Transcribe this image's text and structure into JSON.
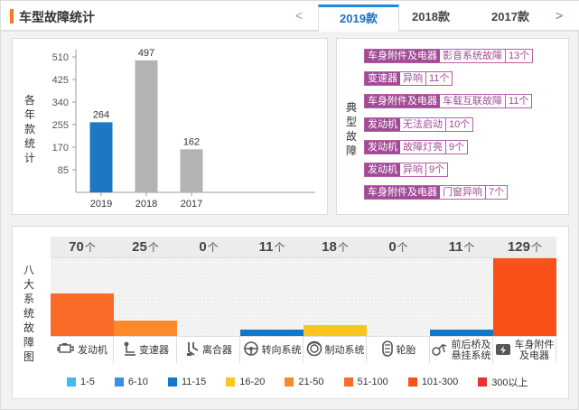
{
  "header": {
    "title": "车型故障统计",
    "prev_arrow": "<",
    "next_arrow": ">",
    "tabs": [
      {
        "label": "2019款",
        "active": true
      },
      {
        "label": "2018款",
        "active": false
      },
      {
        "label": "2017款",
        "active": false
      }
    ]
  },
  "chart_panel": {
    "side_label": [
      "各",
      "年",
      "款",
      "统",
      "计"
    ],
    "accent_color": "#1f77c4"
  },
  "chart_data": {
    "type": "bar",
    "categories": [
      "2019",
      "2018",
      "2017"
    ],
    "values": [
      264,
      497,
      162
    ],
    "colors": [
      "#1f77c4",
      "#b3b3b3",
      "#b3b3b3"
    ],
    "yticks": [
      85,
      170,
      255,
      340,
      425,
      510
    ],
    "ylim": [
      0,
      510
    ],
    "grid": false
  },
  "typical_panel": {
    "side_label": [
      "典",
      "型",
      "故",
      "障"
    ],
    "items": [
      {
        "category": "车身附件及电器",
        "desc": "影音系统故障",
        "count": "13个"
      },
      {
        "category": "变速器",
        "desc": "异响",
        "count": "11个"
      },
      {
        "category": "车身附件及电器",
        "desc": "车载互联故障",
        "count": "11个"
      },
      {
        "category": "发动机",
        "desc": "无法启动",
        "count": "10个"
      },
      {
        "category": "发动机",
        "desc": "故障灯亮",
        "count": "9个"
      },
      {
        "category": "发动机",
        "desc": "异响",
        "count": "9个"
      },
      {
        "category": "车身附件及电器",
        "desc": "门窗异响",
        "count": "7个"
      }
    ]
  },
  "eight_panel": {
    "side_label": [
      "八",
      "大",
      "系",
      "统",
      "故",
      "障",
      "图"
    ],
    "unit": "个",
    "max_value": 129,
    "systems": [
      {
        "value": 70,
        "name": "发动机",
        "icon": "engine-icon",
        "color": "#fb6b28"
      },
      {
        "value": 25,
        "name": "变速器",
        "icon": "gearshift-icon",
        "color": "#fd8a2a"
      },
      {
        "value": 0,
        "name": "离合器",
        "icon": "clutch-icon",
        "color": "#f5f5f5"
      },
      {
        "value": 11,
        "name": "转向系统",
        "icon": "steering-wheel-icon",
        "color": "#0f78c8"
      },
      {
        "value": 18,
        "name": "制动系统",
        "icon": "brake-icon",
        "color": "#fbc520"
      },
      {
        "value": 0,
        "name": "轮胎",
        "icon": "tire-icon",
        "color": "#f5f5f5"
      },
      {
        "value": 11,
        "name": "前后桥及悬挂系统",
        "icon": "suspension-icon",
        "color": "#0f78c8"
      },
      {
        "value": 129,
        "name": "车身附件及电器",
        "icon": "body-electric-icon",
        "color": "#fb5118"
      }
    ],
    "legend": [
      {
        "label": "1-5",
        "color": "#45b8f0"
      },
      {
        "label": "6-10",
        "color": "#3b8fe6"
      },
      {
        "label": "11-15",
        "color": "#0f78c8"
      },
      {
        "label": "16-20",
        "color": "#fbc520"
      },
      {
        "label": "21-50",
        "color": "#fd8a2a"
      },
      {
        "label": "51-100",
        "color": "#fb6b28"
      },
      {
        "label": "101-300",
        "color": "#fb5118"
      },
      {
        "label": "300以上",
        "color": "#e8322c"
      }
    ]
  }
}
